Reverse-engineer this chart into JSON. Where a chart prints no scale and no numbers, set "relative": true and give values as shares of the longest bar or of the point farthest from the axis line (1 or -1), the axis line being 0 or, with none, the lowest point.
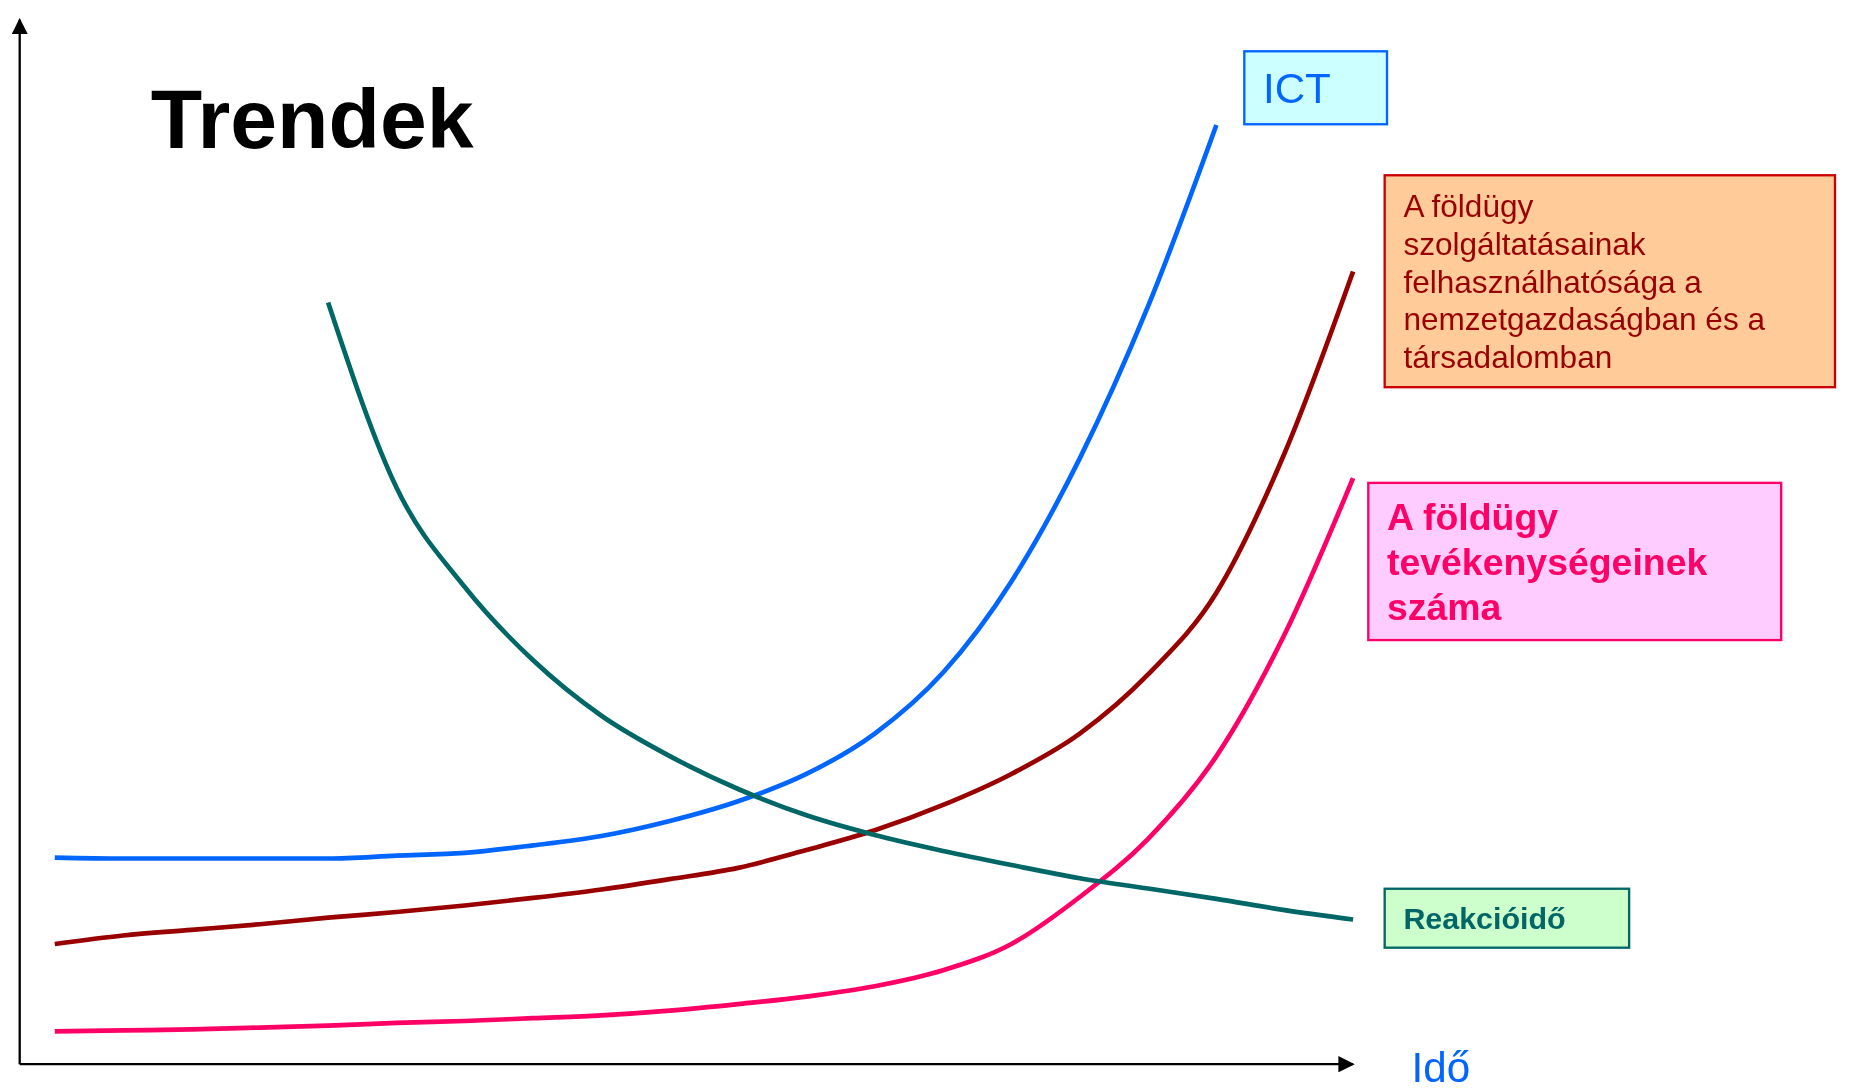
{
  "chart_data": {
    "type": "line",
    "title": "Trendek",
    "xlabel": "Idő",
    "relative": true,
    "marker": "none",
    "line_style": "solid",
    "categories": [
      null,
      null,
      null,
      null,
      null,
      null,
      null,
      null,
      null,
      null,
      null,
      null,
      null,
      null,
      null,
      null,
      null,
      null,
      null,
      null
    ],
    "series": [
      {
        "name": "ICT",
        "color": "#0066ff",
        "values": [
          0.22,
          0.219,
          0.219,
          0.219,
          0.219,
          0.222,
          0.225,
          0.233,
          0.243,
          0.259,
          0.28,
          0.309,
          0.352,
          0.417,
          0.514,
          0.645,
          0.807,
          1.0,
          null,
          null
        ]
      },
      {
        "name": "A földügy szolgáltatásainak felhasználhatósága a nemzetgazdaságban és a társadalomban",
        "color": "#990000",
        "values": [
          0.128,
          0.137,
          0.143,
          0.149,
          0.156,
          0.162,
          0.169,
          0.177,
          0.186,
          0.197,
          0.209,
          0.228,
          0.249,
          0.276,
          0.309,
          0.352,
          0.415,
          0.502,
          0.651,
          0.844
        ]
      },
      {
        "name": "A földügy tevékenységeinek száma",
        "color": "#ff0066",
        "values": [
          0.035,
          0.036,
          0.037,
          0.039,
          0.041,
          0.044,
          0.046,
          0.049,
          0.052,
          0.057,
          0.064,
          0.072,
          0.083,
          0.1,
          0.128,
          0.178,
          0.24,
          0.328,
          0.458,
          0.624
        ]
      },
      {
        "name": "Reakcióidő",
        "color": "#006666",
        "values": [
          null,
          null,
          null,
          null,
          0.811,
          0.614,
          0.508,
          0.43,
          0.371,
          0.328,
          0.293,
          0.265,
          0.244,
          0.227,
          0.212,
          0.198,
          0.187,
          0.176,
          0.164,
          0.154
        ]
      }
    ]
  }
}
